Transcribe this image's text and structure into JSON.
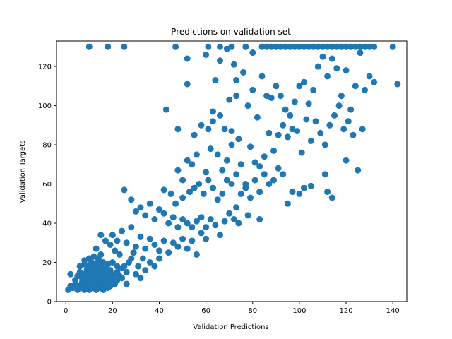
{
  "chart_data": {
    "type": "scatter",
    "title": "Predictions on validation set",
    "xlabel": "Validation Predictions",
    "ylabel": "Validation Targets",
    "xlim": [
      -4,
      146
    ],
    "ylim": [
      0,
      133
    ],
    "xticks": [
      0,
      20,
      40,
      60,
      80,
      100,
      120,
      140
    ],
    "yticks": [
      0,
      20,
      40,
      60,
      80,
      100,
      120
    ],
    "grid": false,
    "marker_color": "#1f77b4",
    "series": [
      {
        "points": [
          [
            10,
            130
          ],
          [
            18,
            130
          ],
          [
            25,
            130
          ],
          [
            47,
            130
          ],
          [
            61,
            130
          ],
          [
            66,
            130
          ],
          [
            71,
            130
          ],
          [
            77,
            130
          ],
          [
            84,
            130
          ],
          [
            86,
            130
          ],
          [
            88,
            130
          ],
          [
            90,
            130
          ],
          [
            92,
            130
          ],
          [
            94,
            130
          ],
          [
            96,
            130
          ],
          [
            98,
            130
          ],
          [
            100,
            130
          ],
          [
            102,
            130
          ],
          [
            104,
            130
          ],
          [
            106,
            130
          ],
          [
            108,
            130
          ],
          [
            110,
            130
          ],
          [
            112,
            130
          ],
          [
            114,
            130
          ],
          [
            116,
            130
          ],
          [
            118,
            130
          ],
          [
            120,
            130
          ],
          [
            122,
            130
          ],
          [
            124,
            130
          ],
          [
            126,
            130
          ],
          [
            128,
            130
          ],
          [
            130,
            130
          ],
          [
            132,
            130
          ],
          [
            140,
            130
          ],
          [
            142,
            111
          ],
          [
            52,
            124
          ],
          [
            69,
            129
          ],
          [
            80,
            127
          ],
          [
            66,
            123
          ],
          [
            72,
            121
          ],
          [
            76,
            117
          ],
          [
            73,
            113
          ],
          [
            64,
            113
          ],
          [
            52,
            111
          ],
          [
            60,
            126
          ],
          [
            43,
            98
          ],
          [
            63,
            97
          ],
          [
            58,
            90
          ],
          [
            48,
            88
          ],
          [
            55,
            85
          ],
          [
            61,
            88
          ],
          [
            63,
            92
          ],
          [
            66,
            95
          ],
          [
            68,
            88
          ],
          [
            71,
            87
          ],
          [
            74,
            83
          ],
          [
            70,
            103
          ],
          [
            73,
            105
          ],
          [
            78,
            100
          ],
          [
            80,
            108
          ],
          [
            82,
            94
          ],
          [
            84,
            115
          ],
          [
            86,
            105
          ],
          [
            88,
            104
          ],
          [
            90,
            110
          ],
          [
            92,
            105
          ],
          [
            94,
            98
          ],
          [
            96,
            95
          ],
          [
            98,
            102
          ],
          [
            100,
            110
          ],
          [
            102,
            112
          ],
          [
            104,
            101
          ],
          [
            106,
            108
          ],
          [
            108,
            120
          ],
          [
            110,
            125
          ],
          [
            112,
            115
          ],
          [
            114,
            124
          ],
          [
            116,
            119
          ],
          [
            118,
            105
          ],
          [
            120,
            118
          ],
          [
            122,
            98
          ],
          [
            124,
            110
          ],
          [
            126,
            127
          ],
          [
            128,
            108
          ],
          [
            130,
            115
          ],
          [
            132,
            112
          ],
          [
            52,
            72
          ],
          [
            48,
            67
          ],
          [
            50,
            62
          ],
          [
            54,
            70
          ],
          [
            56,
            75
          ],
          [
            60,
            66
          ],
          [
            62,
            78
          ],
          [
            65,
            75
          ],
          [
            67,
            67
          ],
          [
            69,
            72
          ],
          [
            71,
            80
          ],
          [
            73,
            65
          ],
          [
            75,
            70
          ],
          [
            77,
            60
          ],
          [
            79,
            79
          ],
          [
            81,
            71
          ],
          [
            83,
            69
          ],
          [
            85,
            74
          ],
          [
            87,
            86
          ],
          [
            89,
            77
          ],
          [
            91,
            85
          ],
          [
            93,
            90
          ],
          [
            95,
            84
          ],
          [
            97,
            88
          ],
          [
            99,
            87
          ],
          [
            101,
            76
          ],
          [
            103,
            93
          ],
          [
            105,
            82
          ],
          [
            107,
            92
          ],
          [
            109,
            86
          ],
          [
            111,
            80
          ],
          [
            113,
            90
          ],
          [
            115,
            95
          ],
          [
            117,
            100
          ],
          [
            119,
            88
          ],
          [
            121,
            92
          ],
          [
            123,
            85
          ],
          [
            125,
            67
          ],
          [
            127,
            88
          ],
          [
            111,
            65
          ],
          [
            120,
            72
          ],
          [
            42,
            57
          ],
          [
            45,
            55
          ],
          [
            47,
            50
          ],
          [
            50,
            53
          ],
          [
            53,
            56
          ],
          [
            55,
            58
          ],
          [
            57,
            60
          ],
          [
            59,
            55
          ],
          [
            61,
            62
          ],
          [
            63,
            58
          ],
          [
            65,
            52
          ],
          [
            67,
            55
          ],
          [
            69,
            62
          ],
          [
            71,
            60
          ],
          [
            73,
            48
          ],
          [
            75,
            55
          ],
          [
            77,
            58
          ],
          [
            79,
            53
          ],
          [
            81,
            62
          ],
          [
            83,
            56
          ],
          [
            85,
            65
          ],
          [
            87,
            60
          ],
          [
            89,
            62
          ],
          [
            91,
            68
          ],
          [
            93,
            65
          ],
          [
            95,
            50
          ],
          [
            97,
            56
          ],
          [
            100,
            55
          ],
          [
            102,
            58
          ],
          [
            105,
            59
          ],
          [
            112,
            56
          ],
          [
            114,
            53
          ],
          [
            25,
            57
          ],
          [
            28,
            52
          ],
          [
            30,
            46
          ],
          [
            32,
            48
          ],
          [
            34,
            44
          ],
          [
            36,
            50
          ],
          [
            38,
            42
          ],
          [
            40,
            47
          ],
          [
            42,
            45
          ],
          [
            44,
            40
          ],
          [
            46,
            43
          ],
          [
            48,
            38
          ],
          [
            50,
            42
          ],
          [
            52,
            40
          ],
          [
            54,
            38
          ],
          [
            56,
            41
          ],
          [
            58,
            43
          ],
          [
            60,
            38
          ],
          [
            62,
            42
          ],
          [
            64,
            39
          ],
          [
            66,
            34
          ],
          [
            68,
            41
          ],
          [
            70,
            45
          ],
          [
            72,
            42
          ],
          [
            74,
            40
          ],
          [
            78,
            44
          ],
          [
            83,
            42
          ],
          [
            58,
            35
          ],
          [
            60,
            32
          ],
          [
            20,
            34
          ],
          [
            22,
            31
          ],
          [
            24,
            36
          ],
          [
            26,
            30
          ],
          [
            28,
            38
          ],
          [
            30,
            28
          ],
          [
            32,
            33
          ],
          [
            34,
            27
          ],
          [
            36,
            32
          ],
          [
            38,
            29
          ],
          [
            40,
            26
          ],
          [
            42,
            31
          ],
          [
            44,
            25
          ],
          [
            46,
            30
          ],
          [
            48,
            28
          ],
          [
            50,
            32
          ],
          [
            52,
            27
          ],
          [
            54,
            31
          ],
          [
            56,
            24
          ],
          [
            20,
            20
          ],
          [
            22,
            18
          ],
          [
            24,
            17
          ],
          [
            26,
            15
          ],
          [
            28,
            22
          ],
          [
            30,
            14
          ],
          [
            32,
            12
          ],
          [
            34,
            16
          ],
          [
            36,
            20
          ],
          [
            38,
            18
          ],
          [
            40,
            22
          ],
          [
            26,
            9
          ],
          [
            18,
            8
          ],
          [
            1,
            6
          ],
          [
            2,
            8
          ],
          [
            2,
            14
          ],
          [
            3,
            7
          ],
          [
            4,
            9
          ],
          [
            4,
            11
          ],
          [
            5,
            6
          ],
          [
            5,
            13
          ],
          [
            6,
            8
          ],
          [
            6,
            15
          ],
          [
            6,
            18
          ],
          [
            7,
            7
          ],
          [
            7,
            10
          ],
          [
            7,
            12
          ],
          [
            8,
            6
          ],
          [
            8,
            14
          ],
          [
            8,
            19
          ],
          [
            8,
            21
          ],
          [
            9,
            8
          ],
          [
            9,
            11
          ],
          [
            9,
            16
          ],
          [
            10,
            6
          ],
          [
            10,
            9
          ],
          [
            10,
            13
          ],
          [
            10,
            18
          ],
          [
            10,
            22
          ],
          [
            11,
            7
          ],
          [
            11,
            10
          ],
          [
            11,
            15
          ],
          [
            11,
            20
          ],
          [
            12,
            8
          ],
          [
            12,
            12
          ],
          [
            12,
            17
          ],
          [
            12,
            23
          ],
          [
            13,
            6
          ],
          [
            13,
            9
          ],
          [
            13,
            14
          ],
          [
            13,
            19
          ],
          [
            14,
            7
          ],
          [
            14,
            11
          ],
          [
            14,
            16
          ],
          [
            14,
            21
          ],
          [
            15,
            8
          ],
          [
            15,
            13
          ],
          [
            15,
            18
          ],
          [
            15,
            24
          ],
          [
            16,
            6
          ],
          [
            16,
            10
          ],
          [
            16,
            15
          ],
          [
            16,
            20
          ],
          [
            17,
            9
          ],
          [
            17,
            12
          ],
          [
            17,
            17
          ],
          [
            18,
            7
          ],
          [
            18,
            11
          ],
          [
            18,
            14
          ],
          [
            18,
            19
          ],
          [
            19,
            8
          ],
          [
            19,
            13
          ],
          [
            19,
            16
          ],
          [
            20,
            10
          ],
          [
            20,
            12
          ],
          [
            21,
            9
          ],
          [
            21,
            14
          ],
          [
            22,
            11
          ],
          [
            22,
            15
          ],
          [
            23,
            13
          ],
          [
            24,
            12
          ],
          [
            15,
            34
          ],
          [
            17,
            31
          ],
          [
            13,
            27
          ],
          [
            19,
            29
          ],
          [
            21,
            26
          ],
          [
            23,
            24
          ],
          [
            14,
            22
          ],
          [
            25,
            18
          ],
          [
            27,
            20
          ],
          [
            29,
            25
          ],
          [
            31,
            18
          ],
          [
            33,
            22
          ]
        ]
      }
    ]
  }
}
